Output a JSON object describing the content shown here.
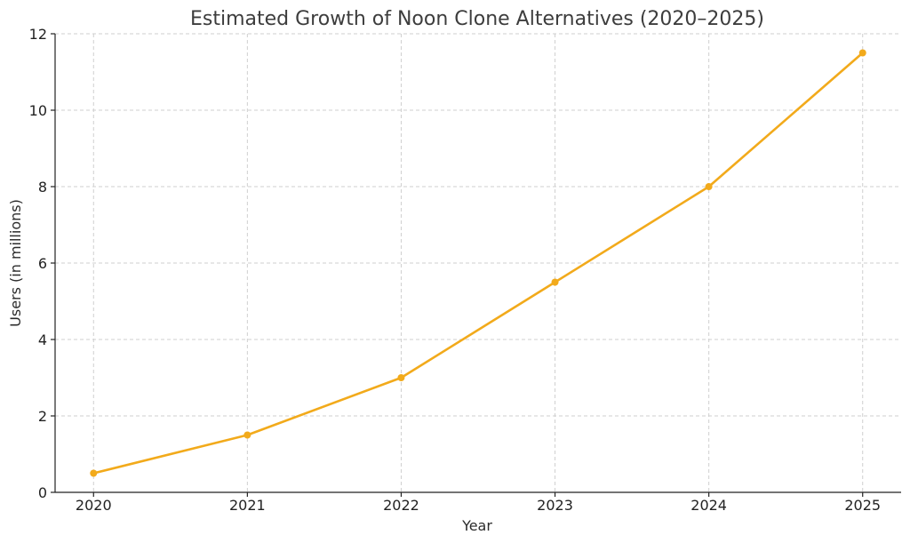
{
  "chart_data": {
    "type": "line",
    "title": "Estimated Growth of Noon Clone Alternatives (2020–2025)",
    "xlabel": "Year",
    "ylabel": "Users (in millions)",
    "x": [
      2020,
      2021,
      2022,
      2023,
      2024,
      2025
    ],
    "x_tick_labels": [
      "2020",
      "2021",
      "2022",
      "2023",
      "2024",
      "2025"
    ],
    "y_ticks": [
      0,
      2,
      4,
      6,
      8,
      10,
      12
    ],
    "y_tick_labels": [
      "0",
      "2",
      "4",
      "6",
      "8",
      "10",
      "12"
    ],
    "xlim": [
      2019.75,
      2025.25
    ],
    "ylim": [
      0,
      12
    ],
    "grid": true,
    "series": [
      {
        "values": [
          0.5,
          1.5,
          3.0,
          5.5,
          8.0,
          11.5
        ],
        "color": "#f2aa1b",
        "marker": "circle"
      }
    ]
  }
}
